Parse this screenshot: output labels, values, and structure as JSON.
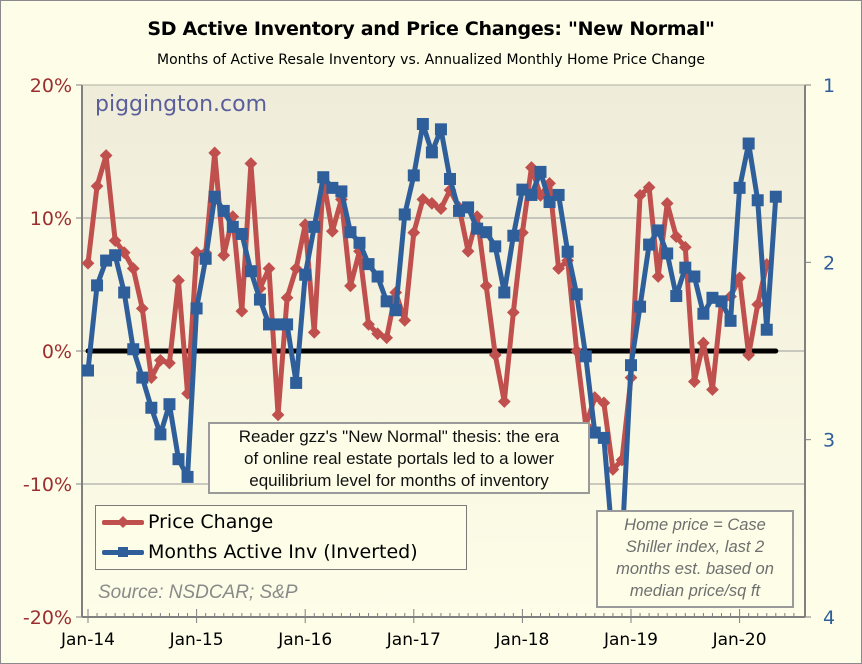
{
  "chart_data": {
    "type": "line",
    "title": "SD Active Inventory and Price Changes: \"New Normal\"",
    "subtitle": "Months of Active Resale Inventory vs. Annualized Monthly Home Price Change",
    "watermark": "piggington.com",
    "xlabel": "",
    "x_ticks": [
      "Jan-14",
      "Jan-15",
      "Jan-16",
      "Jan-17",
      "Jan-18",
      "Jan-19",
      "Jan-20"
    ],
    "x_start": "Jan-14",
    "x_end": "Jun-20",
    "left_axis": {
      "label": "",
      "range": [
        -20,
        20
      ],
      "ticks": [
        "-20%",
        "-10%",
        "0%",
        "10%",
        "20%"
      ],
      "tick_values": [
        -20,
        -10,
        0,
        10,
        20
      ],
      "color": "#9b2f2f"
    },
    "right_axis": {
      "label": "",
      "range": [
        4,
        1
      ],
      "inverted": true,
      "ticks": [
        "1",
        "2",
        "3",
        "4"
      ],
      "tick_values": [
        1,
        2,
        3,
        4
      ],
      "color": "#2f5f9a"
    },
    "grid": "horizontal",
    "zero_line": true,
    "series": [
      {
        "name": "Price Change",
        "axis": "left",
        "color": "#c0504d",
        "marker": "diamond",
        "unit": "%",
        "values": [
          6.6,
          12.4,
          14.7,
          8.3,
          7.4,
          6.2,
          3.2,
          -2.0,
          -0.7,
          -0.9,
          5.3,
          -3.2,
          7.4,
          7.4,
          14.9,
          7.2,
          10.1,
          3.0,
          14.1,
          4.7,
          6.2,
          -4.8,
          4.0,
          6.2,
          9.5,
          1.4,
          12.9,
          9.0,
          11.4,
          4.9,
          7.5,
          2.0,
          1.3,
          1.0,
          4.4,
          2.3,
          8.9,
          11.4,
          11.1,
          10.7,
          12.1,
          10.8,
          7.5,
          10.1,
          4.9,
          -0.3,
          -3.8,
          2.9,
          8.9,
          13.8,
          11.7,
          12.6,
          6.2,
          6.8,
          0.0,
          -5.6,
          -3.5,
          -3.9,
          -8.9,
          -8.2,
          -2.0,
          11.7,
          12.3,
          5.6,
          11.1,
          8.6,
          7.8,
          -2.3,
          0.6,
          -2.9,
          3.7,
          4.1,
          5.5,
          -0.3,
          3.5,
          6.5
        ]
      },
      {
        "name": "Months Active Inv (Inverted)",
        "axis": "right",
        "color": "#2f5f9a",
        "marker": "square",
        "unit": "months",
        "values": [
          2.61,
          2.13,
          1.99,
          1.96,
          2.17,
          2.49,
          2.65,
          2.82,
          2.97,
          2.8,
          3.11,
          3.21,
          2.26,
          1.98,
          1.63,
          1.71,
          1.8,
          1.84,
          2.05,
          2.21,
          2.35,
          2.35,
          2.35,
          2.68,
          2.07,
          1.8,
          1.52,
          1.58,
          1.6,
          1.83,
          1.89,
          2.01,
          2.08,
          2.22,
          2.27,
          1.73,
          1.51,
          1.22,
          1.38,
          1.25,
          1.53,
          1.71,
          1.69,
          1.81,
          1.83,
          1.91,
          2.17,
          1.85,
          1.59,
          1.62,
          1.49,
          1.66,
          1.62,
          1.94,
          2.18,
          2.53,
          2.96,
          2.99,
          3.6,
          3.6,
          2.58,
          2.25,
          1.9,
          1.82,
          1.95,
          2.19,
          2.03,
          2.08,
          2.29,
          2.2,
          2.22,
          2.33,
          1.58,
          1.33,
          1.65,
          2.38,
          1.63
        ]
      }
    ],
    "legend": {
      "placement": "bottom-left",
      "entries": [
        "Price Change",
        "Months Active Inv (Inverted)"
      ]
    },
    "annotations": [
      "Reader gzz's \"New Normal\" thesis: the era of online real estate portals led to a lower equilibrium level for months of inventory",
      "Home price = Case Shiller index, last 2 months est. based on median price/sq ft",
      "Source: NSDCAR; S&P"
    ]
  },
  "text": {
    "thesis_lines": [
      "Reader gzz's \"New Normal\" thesis: the era",
      "of online real estate portals led to a lower",
      "equilibrium level for months of inventory"
    ],
    "caveat_lines": [
      "Home price = Case",
      "Shiller index, last 2",
      "months est. based on",
      "median price/sq ft"
    ],
    "source": "Source: NSDCAR; S&P"
  }
}
